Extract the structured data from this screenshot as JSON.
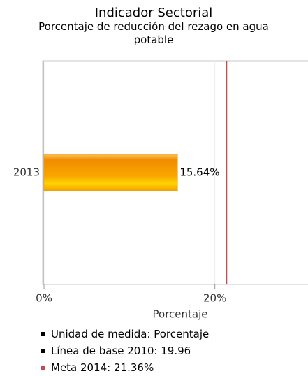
{
  "chart_data": {
    "type": "hbar",
    "title": "Indicador Sectorial",
    "subtitle": "Porcentaje de reducción del rezago en agua potable",
    "categories": [
      "2013"
    ],
    "values": [
      15.64
    ],
    "value_labels": [
      "15.64%"
    ],
    "color": "#f79a00",
    "xlim": [
      0,
      30
    ],
    "xticks": [
      {
        "value": 0,
        "label": "0%"
      },
      {
        "value": 20,
        "label": "20%"
      }
    ],
    "xlabel": "Porcentaje",
    "grid": true,
    "reference_line": {
      "value": 21.36,
      "color": "#c0504d"
    },
    "legend": [
      {
        "text": "Unidad de medida: Porcentaje",
        "color": "#000000"
      },
      {
        "text": "Línea de base 2010: 19.96",
        "color": "#000000"
      },
      {
        "text": "Meta 2014: 21.36%",
        "color": "#c0504d"
      }
    ]
  }
}
